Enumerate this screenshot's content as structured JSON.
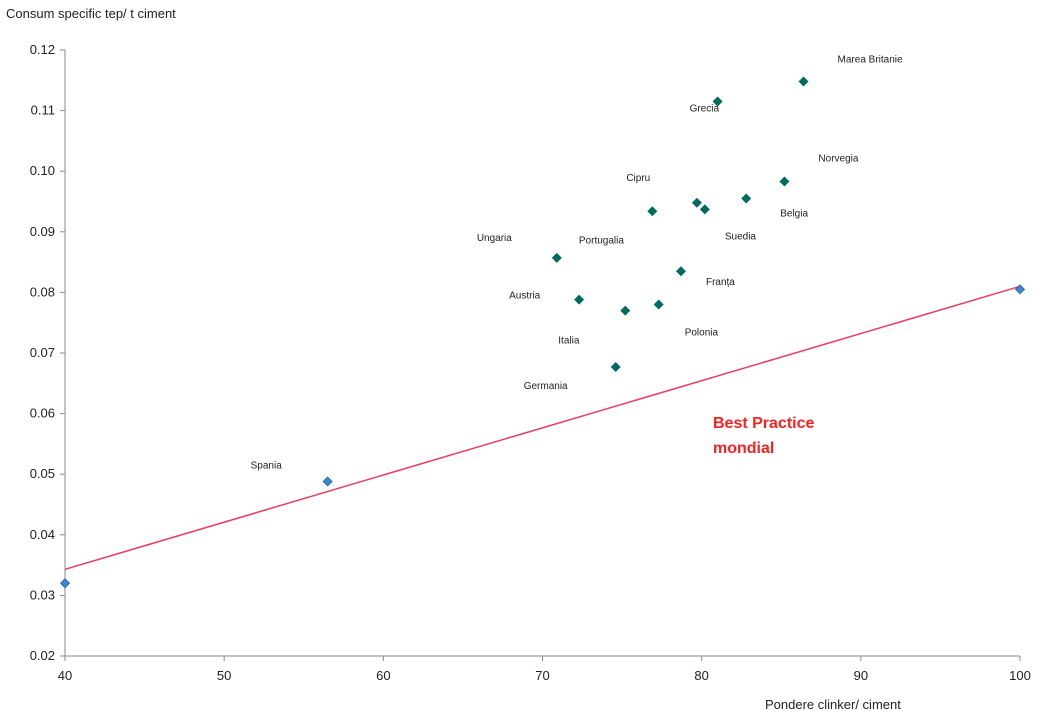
{
  "chart_data": {
    "type": "scatter",
    "ylabel": "Consum specific tep/ t ciment",
    "xlabel": "Pondere clinker/ ciment",
    "xlim": [
      40,
      100
    ],
    "ylim": [
      0.02,
      0.12
    ],
    "x_ticks": [
      "40",
      "50",
      "60",
      "70",
      "80",
      "90",
      "100"
    ],
    "y_ticks": [
      "0.02",
      "0.03",
      "0.04",
      "0.05",
      "0.06",
      "0.07",
      "0.08",
      "0.09",
      "0.10",
      "0.11",
      "0.12"
    ],
    "grid": false,
    "series": [
      {
        "color": "#006b5f",
        "marker": "diamond",
        "points": [
          {
            "label": "Marea Britanie",
            "x": 86.4,
            "y": 0.1148
          },
          {
            "label": "Grecia",
            "x": 81.0,
            "y": 0.1115
          },
          {
            "label": "Norvegia",
            "x": 85.2,
            "y": 0.0983
          },
          {
            "label": "Cipru",
            "x": 76.9,
            "y": 0.0934
          },
          {
            "label": "Belgia",
            "x": 82.8,
            "y": 0.0955
          },
          {
            "label": "Ungaria",
            "x": 70.9,
            "y": 0.0857
          },
          {
            "label": "Portugalia",
            "x": 79.7,
            "y": 0.0948
          },
          {
            "label": "Suedia",
            "x": 80.2,
            "y": 0.0937
          },
          {
            "label": "Franța",
            "x": 78.7,
            "y": 0.0835
          },
          {
            "label": "Austria",
            "x": 72.3,
            "y": 0.0788
          },
          {
            "label": "Italia",
            "x": 75.2,
            "y": 0.077
          },
          {
            "label": "Polonia",
            "x": 77.3,
            "y": 0.078
          },
          {
            "label": "Germania",
            "x": 74.6,
            "y": 0.0677
          }
        ]
      },
      {
        "color": "#3a88d6",
        "marker": "diamond",
        "points": [
          {
            "label": "Spania",
            "x": 56.5,
            "y": 0.0488
          },
          {
            "label": "",
            "x": 40.0,
            "y": 0.032
          },
          {
            "label": "",
            "x": 100.0,
            "y": 0.0805
          }
        ]
      }
    ],
    "trendline": {
      "color": "#ef3a5d",
      "x": [
        40,
        100
      ],
      "y": [
        0.0343,
        0.081
      ]
    },
    "annotation": {
      "lines": [
        "Best Practice",
        "mondial"
      ],
      "color": "#ff1e1e"
    }
  }
}
